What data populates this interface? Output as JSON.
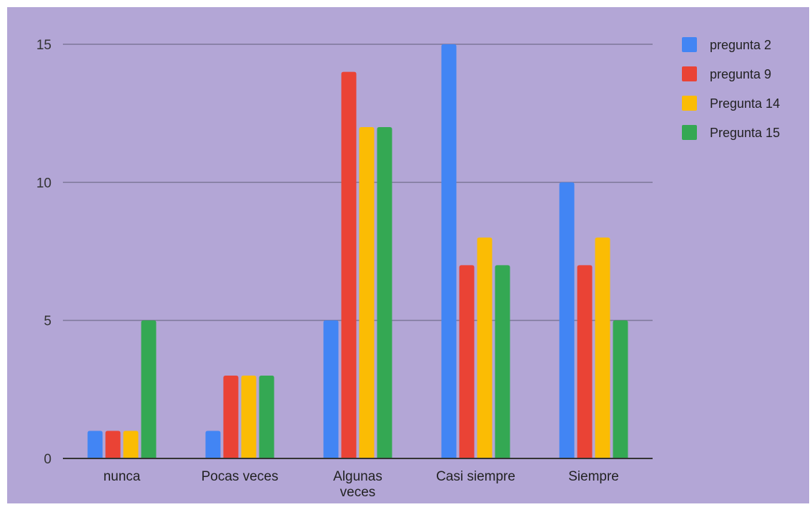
{
  "chart_data": {
    "type": "bar",
    "categories": [
      [
        "nunca"
      ],
      [
        "Pocas veces"
      ],
      [
        "Algunas",
        "veces"
      ],
      [
        "Casi siempre"
      ],
      [
        "Siempre"
      ]
    ],
    "series": [
      {
        "name": "pregunta 2",
        "color": "#4285f4",
        "values": [
          1,
          1,
          5,
          15,
          10
        ]
      },
      {
        "name": "pregunta 9",
        "color": "#ea4335",
        "values": [
          1,
          3,
          14,
          7,
          7
        ]
      },
      {
        "name": "Pregunta 14",
        "color": "#fbbc04",
        "values": [
          1,
          3,
          12,
          8,
          8
        ]
      },
      {
        "name": "Pregunta 15",
        "color": "#34a853",
        "values": [
          5,
          3,
          12,
          7,
          5
        ]
      }
    ],
    "y_ticks": [
      "0",
      "5",
      "10",
      "15"
    ],
    "ylim": [
      0,
      15
    ],
    "grid": true,
    "legend_position": "right",
    "title": "",
    "xlabel": "",
    "ylabel": ""
  }
}
